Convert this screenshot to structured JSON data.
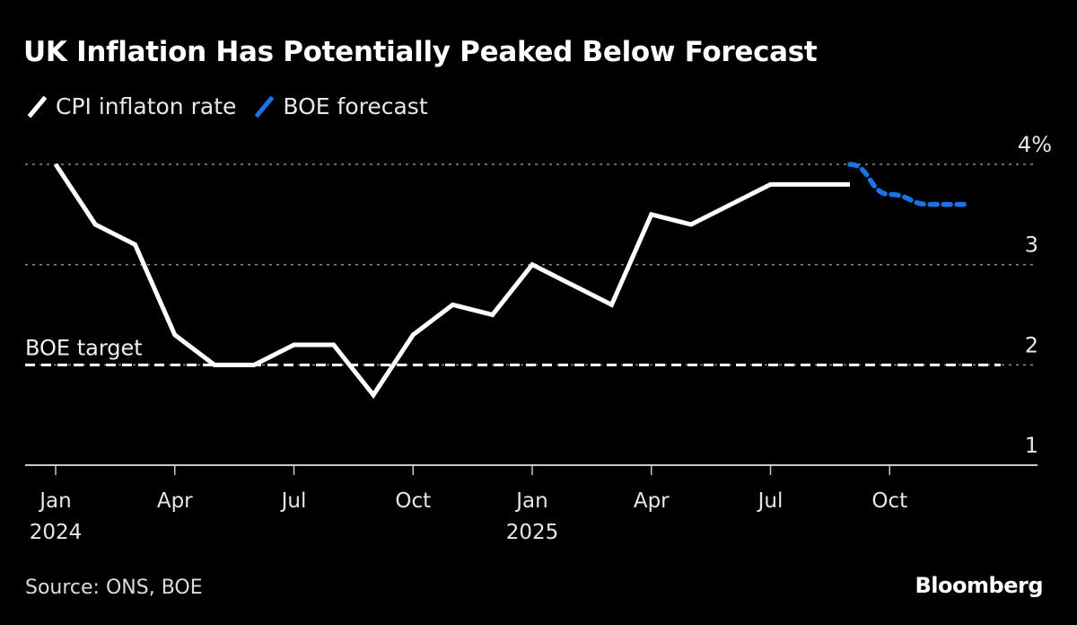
{
  "chart_data": {
    "type": "line",
    "title": "UK Inflation Has Potentially Peaked Below Forecast",
    "legend": [
      {
        "name": "CPI inflaton rate",
        "color": "#ffffff",
        "style": "solid"
      },
      {
        "name": "BOE forecast",
        "color": "#1a73e8",
        "style": "dashed"
      }
    ],
    "legend_position": "top-left",
    "x_axis": {
      "type": "monthly",
      "start": "2024-01",
      "range_months": [
        0,
        24
      ],
      "ticks": [
        {
          "month": 0,
          "label": "Jan",
          "sublabel": "2024"
        },
        {
          "month": 3,
          "label": "Apr",
          "sublabel": ""
        },
        {
          "month": 6,
          "label": "Jul",
          "sublabel": ""
        },
        {
          "month": 9,
          "label": "Oct",
          "sublabel": ""
        },
        {
          "month": 12,
          "label": "Jan",
          "sublabel": "2025"
        },
        {
          "month": 15,
          "label": "Apr",
          "sublabel": ""
        },
        {
          "month": 18,
          "label": "Jul",
          "sublabel": ""
        },
        {
          "month": 21,
          "label": "Oct",
          "sublabel": ""
        }
      ]
    },
    "y_axis": {
      "ylim": [
        1,
        4.1
      ],
      "ticks": [
        {
          "value": 4,
          "label": "4%"
        },
        {
          "value": 3,
          "label": "3"
        },
        {
          "value": 2,
          "label": "2"
        },
        {
          "value": 1,
          "label": "1"
        }
      ],
      "position": "right",
      "grid": true
    },
    "series": [
      {
        "name": "CPI inflaton rate",
        "color": "#ffffff",
        "x_months": [
          0,
          1,
          2,
          3,
          4,
          5,
          6,
          7,
          8,
          9,
          10,
          11,
          12,
          13,
          14,
          15,
          16,
          17,
          18,
          19,
          20
        ],
        "values": [
          4.0,
          3.4,
          3.2,
          2.3,
          2.0,
          2.0,
          2.2,
          2.2,
          1.7,
          2.3,
          2.6,
          2.5,
          3.0,
          2.8,
          2.6,
          3.5,
          3.4,
          3.6,
          3.8,
          3.8,
          3.8
        ]
      },
      {
        "name": "BOE forecast",
        "color": "#1a73e8",
        "x_months": [
          20,
          21,
          22,
          23
        ],
        "values": [
          4.0,
          3.7,
          3.6,
          3.6
        ]
      }
    ],
    "reference_line": {
      "label": "BOE target",
      "value": 2.0,
      "color": "#ffffff"
    }
  },
  "footer": {
    "source": "Source: ONS, BOE",
    "brand": "Bloomberg"
  }
}
